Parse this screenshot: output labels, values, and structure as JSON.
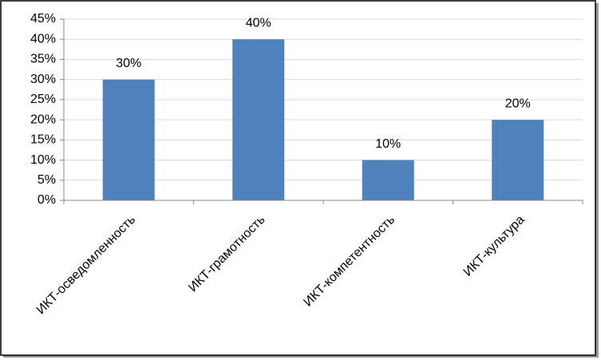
{
  "chart_data": {
    "type": "bar",
    "categories": [
      "ИКТ-осведомленность",
      "ИКТ-грамотность",
      "ИКТ-компетентность",
      "ИКТ-культура"
    ],
    "values": [
      30,
      40,
      10,
      20
    ],
    "value_labels": [
      "30%",
      "40%",
      "10%",
      "20%"
    ],
    "color": "#4f81bd",
    "ylim": [
      0,
      45
    ],
    "yticks": [
      {
        "value": 0,
        "label": "0%"
      },
      {
        "value": 5,
        "label": "5%"
      },
      {
        "value": 10,
        "label": "10%"
      },
      {
        "value": 15,
        "label": "15%"
      },
      {
        "value": 20,
        "label": "20%"
      },
      {
        "value": 25,
        "label": "25%"
      },
      {
        "value": 30,
        "label": "30%"
      },
      {
        "value": 35,
        "label": "35%"
      },
      {
        "value": 40,
        "label": "40%"
      },
      {
        "value": 45,
        "label": "45%"
      }
    ],
    "grid": true
  }
}
